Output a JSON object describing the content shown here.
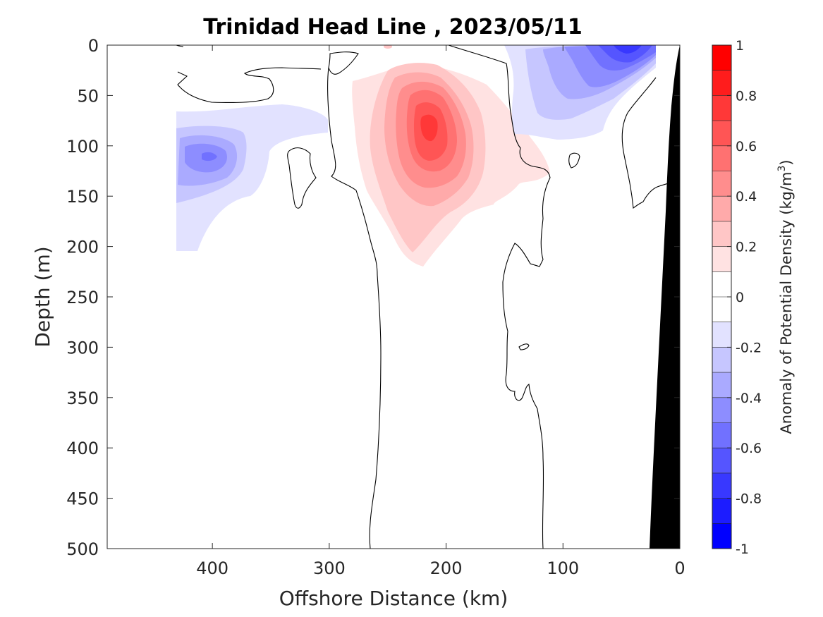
{
  "chart_data": {
    "type": "heatmap",
    "title": "Trinidad Head Line , 2023/05/11",
    "xlabel": "Offshore Distance (km)",
    "ylabel": "Depth (m)",
    "xlim": [
      490,
      0
    ],
    "ylim": [
      0,
      500
    ],
    "x_ticks": [
      "400",
      "300",
      "200",
      "100",
      "0"
    ],
    "x_tick_values": [
      400,
      300,
      200,
      100,
      0
    ],
    "y_ticks": [
      "0",
      "50",
      "100",
      "150",
      "200",
      "250",
      "300",
      "350",
      "400",
      "450",
      "500"
    ],
    "y_tick_values": [
      0,
      50,
      100,
      150,
      200,
      250,
      300,
      350,
      400,
      450,
      500
    ],
    "colorbar": {
      "label": "Anomaly of Potential Density (kg/m",
      "label_superscript": "3",
      "label_close": ")",
      "ticks": [
        "1",
        "0.8",
        "0.6",
        "0.4",
        "0.2",
        "0",
        "-0.2",
        "-0.4",
        "-0.6",
        "-0.8",
        "-1"
      ],
      "tick_values": [
        1,
        0.8,
        0.6,
        0.4,
        0.2,
        0,
        -0.2,
        -0.4,
        -0.6,
        -0.8,
        -1
      ],
      "range": [
        -1,
        1
      ],
      "levels": [
        -1,
        -0.9,
        -0.8,
        -0.7,
        -0.6,
        -0.5,
        -0.4,
        -0.3,
        -0.2,
        -0.1,
        0.1,
        0.2,
        0.3,
        0.4,
        0.5,
        0.6,
        0.7,
        0.8,
        0.9,
        1
      ],
      "colors": [
        "#0000ff",
        "#1c1cff",
        "#3838ff",
        "#5555ff",
        "#7171ff",
        "#8d8dff",
        "#aaaaff",
        "#c6c6ff",
        "#e2e2ff",
        "#ffffff",
        "#ffffff",
        "#ffe2e2",
        "#ffc6c6",
        "#ffaaaa",
        "#ff8d8d",
        "#ff7171",
        "#ff5555",
        "#ff3838",
        "#ff1c1c",
        "#ff0000"
      ]
    },
    "features": [
      {
        "name": "surface-dense-anomaly",
        "x_km": [
          30,
          100
        ],
        "depth_m": [
          0,
          130
        ],
        "min_value": -0.7
      },
      {
        "name": "subsurface-light-anomaly",
        "x_km": [
          160,
          290
        ],
        "depth_m": [
          20,
          220
        ],
        "max_value": 0.8,
        "center_x_km": 218,
        "center_depth_m": 80
      },
      {
        "name": "offshore-dense-anomaly",
        "x_km": [
          380,
          432
        ],
        "depth_m": [
          60,
          205
        ],
        "min_value": -0.6,
        "center_x_km": 402,
        "center_depth_m": 112
      }
    ],
    "bathymetry": {
      "color": "#000000",
      "shelf_x_km": 0,
      "bottom_x_km_at_500m": 25
    }
  }
}
